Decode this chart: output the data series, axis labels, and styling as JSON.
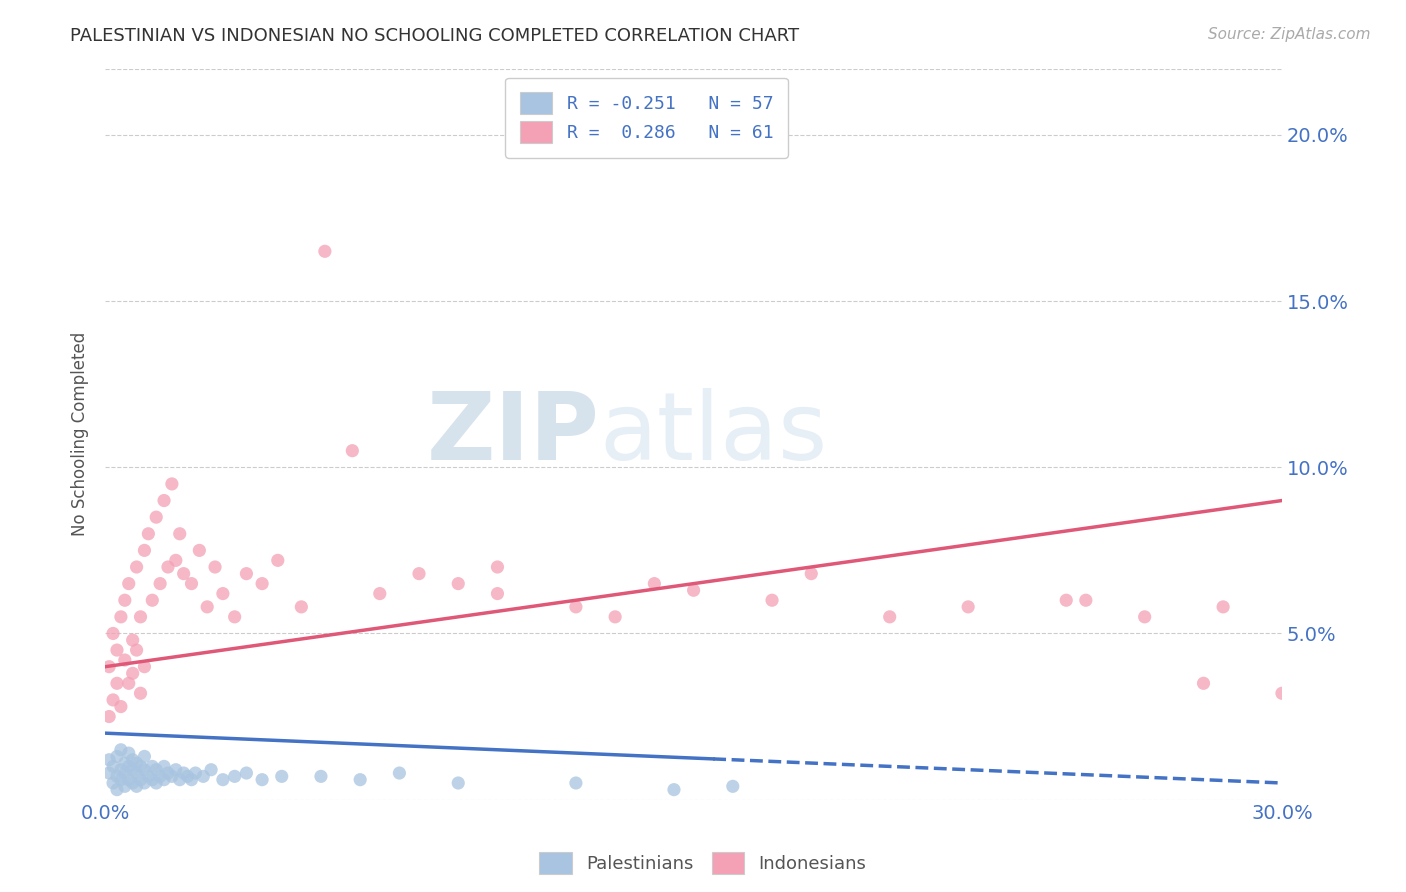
{
  "title": "PALESTINIAN VS INDONESIAN NO SCHOOLING COMPLETED CORRELATION CHART",
  "source": "Source: ZipAtlas.com",
  "ylabel": "No Schooling Completed",
  "xlim": [
    0.0,
    0.3
  ],
  "ylim": [
    0.0,
    0.22
  ],
  "background_color": "#ffffff",
  "grid_color": "#cccccc",
  "axis_label_color": "#4472c4",
  "title_color": "#333333",
  "palestinian_color": "#a8c4e0",
  "indonesian_color": "#f4a0b5",
  "palestinian_line_color": "#4472c4",
  "indonesian_line_color": "#e05878",
  "legend_r_palestinian": "-0.251",
  "legend_n_palestinian": "57",
  "legend_r_indonesian": "0.286",
  "legend_n_indonesian": "61",
  "watermark_zip": "ZIP",
  "watermark_atlas": "atlas",
  "palestinians_x": [
    0.001,
    0.001,
    0.002,
    0.002,
    0.003,
    0.003,
    0.003,
    0.004,
    0.004,
    0.004,
    0.005,
    0.005,
    0.005,
    0.006,
    0.006,
    0.006,
    0.007,
    0.007,
    0.007,
    0.008,
    0.008,
    0.008,
    0.009,
    0.009,
    0.01,
    0.01,
    0.01,
    0.011,
    0.012,
    0.012,
    0.013,
    0.013,
    0.014,
    0.015,
    0.015,
    0.016,
    0.017,
    0.018,
    0.019,
    0.02,
    0.021,
    0.022,
    0.023,
    0.025,
    0.027,
    0.03,
    0.033,
    0.036,
    0.04,
    0.045,
    0.055,
    0.065,
    0.075,
    0.09,
    0.12,
    0.145,
    0.16
  ],
  "palestinians_y": [
    0.008,
    0.012,
    0.005,
    0.01,
    0.007,
    0.013,
    0.003,
    0.006,
    0.009,
    0.015,
    0.004,
    0.008,
    0.011,
    0.006,
    0.01,
    0.014,
    0.005,
    0.009,
    0.012,
    0.004,
    0.008,
    0.011,
    0.006,
    0.01,
    0.005,
    0.009,
    0.013,
    0.007,
    0.006,
    0.01,
    0.005,
    0.009,
    0.007,
    0.006,
    0.01,
    0.008,
    0.007,
    0.009,
    0.006,
    0.008,
    0.007,
    0.006,
    0.008,
    0.007,
    0.009,
    0.006,
    0.007,
    0.008,
    0.006,
    0.007,
    0.007,
    0.006,
    0.008,
    0.005,
    0.005,
    0.003,
    0.004
  ],
  "indonesians_x": [
    0.001,
    0.001,
    0.002,
    0.002,
    0.003,
    0.003,
    0.004,
    0.004,
    0.005,
    0.005,
    0.006,
    0.006,
    0.007,
    0.007,
    0.008,
    0.008,
    0.009,
    0.009,
    0.01,
    0.01,
    0.011,
    0.012,
    0.013,
    0.014,
    0.015,
    0.016,
    0.017,
    0.018,
    0.019,
    0.02,
    0.022,
    0.024,
    0.026,
    0.028,
    0.03,
    0.033,
    0.036,
    0.04,
    0.044,
    0.05,
    0.056,
    0.063,
    0.07,
    0.08,
    0.09,
    0.1,
    0.12,
    0.14,
    0.17,
    0.2,
    0.22,
    0.245,
    0.265,
    0.285,
    0.3,
    0.1,
    0.28,
    0.25,
    0.18,
    0.15,
    0.13
  ],
  "indonesians_y": [
    0.04,
    0.025,
    0.05,
    0.03,
    0.045,
    0.035,
    0.055,
    0.028,
    0.042,
    0.06,
    0.035,
    0.065,
    0.048,
    0.038,
    0.07,
    0.045,
    0.055,
    0.032,
    0.075,
    0.04,
    0.08,
    0.06,
    0.085,
    0.065,
    0.09,
    0.07,
    0.095,
    0.072,
    0.08,
    0.068,
    0.065,
    0.075,
    0.058,
    0.07,
    0.062,
    0.055,
    0.068,
    0.065,
    0.072,
    0.058,
    0.165,
    0.105,
    0.062,
    0.068,
    0.065,
    0.062,
    0.058,
    0.065,
    0.06,
    0.055,
    0.058,
    0.06,
    0.055,
    0.058,
    0.032,
    0.07,
    0.035,
    0.06,
    0.068,
    0.063,
    0.055
  ],
  "ind_trend_x0": 0.0,
  "ind_trend_y0": 0.04,
  "ind_trend_x1": 0.3,
  "ind_trend_y1": 0.09,
  "pal_trend_x0": 0.0,
  "pal_trend_y0": 0.02,
  "pal_trend_x1_solid": 0.155,
  "pal_trend_x1": 0.3,
  "pal_trend_y1": 0.005
}
